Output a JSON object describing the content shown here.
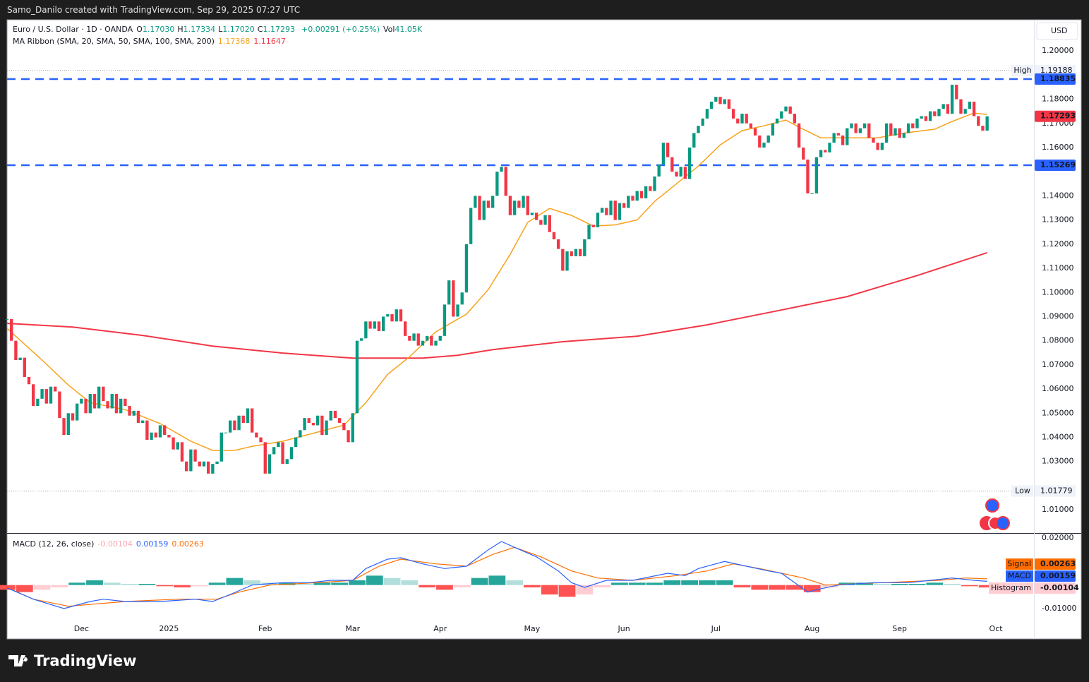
{
  "attribution": "Samo_Danilo created with TradingView.com, Sep 29, 2025 07:27 UTC",
  "brand": "TradingView",
  "legend": {
    "symbol": "Euro / U.S. Dollar · 1D · OANDA",
    "ohlc": [
      {
        "label": "O",
        "value": "1.17030"
      },
      {
        "label": "H",
        "value": "1.17334"
      },
      {
        "label": "L",
        "value": "1.17020"
      },
      {
        "label": "C",
        "value": "1.17293"
      }
    ],
    "change": "+0.00291 (+0.25%)",
    "volume": {
      "label": "Vol",
      "value": "41.05K"
    },
    "ma_title": "MA Ribbon (SMA, 20, SMA, 50, SMA, 100, SMA, 200)"
  },
  "chart_data": [
    {
      "type": "candlestick",
      "currency": "USD",
      "up_color": "#089981",
      "down_color": "#f23645",
      "closes": [
        1.089,
        1.08,
        1.072,
        1.073,
        1.065,
        1.062,
        1.053,
        1.056,
        1.06,
        1.054,
        1.061,
        1.059,
        1.048,
        1.041,
        1.05,
        1.047,
        1.054,
        1.056,
        1.05,
        1.058,
        1.052,
        1.061,
        1.055,
        1.052,
        1.058,
        1.05,
        1.056,
        1.053,
        1.049,
        1.051,
        1.046,
        1.047,
        1.039,
        1.042,
        1.04,
        1.045,
        1.041,
        1.04,
        1.035,
        1.038,
        1.03,
        1.026,
        1.035,
        1.03,
        1.028,
        1.03,
        1.025,
        1.029,
        1.03,
        1.042,
        1.042,
        1.047,
        1.043,
        1.049,
        1.046,
        1.052,
        1.042,
        1.04,
        1.038,
        1.025,
        1.033,
        1.036,
        1.038,
        1.029,
        1.031,
        1.036,
        1.04,
        1.043,
        1.048,
        1.046,
        1.045,
        1.049,
        1.041,
        1.047,
        1.051,
        1.048,
        1.046,
        1.043,
        1.038,
        1.05,
        1.08,
        1.081,
        1.088,
        1.085,
        1.088,
        1.084,
        1.09,
        1.091,
        1.088,
        1.093,
        1.088,
        1.082,
        1.08,
        1.083,
        1.078,
        1.08,
        1.082,
        1.078,
        1.08,
        1.082,
        1.095,
        1.105,
        1.09,
        1.095,
        1.1,
        1.12,
        1.135,
        1.14,
        1.13,
        1.138,
        1.135,
        1.14,
        1.15,
        1.152,
        1.14,
        1.132,
        1.138,
        1.135,
        1.14,
        1.132,
        1.133,
        1.13,
        1.128,
        1.132,
        1.125,
        1.122,
        1.118,
        1.109,
        1.117,
        1.115,
        1.118,
        1.115,
        1.122,
        1.128,
        1.127,
        1.133,
        1.135,
        1.132,
        1.138,
        1.13,
        1.137,
        1.135,
        1.14,
        1.138,
        1.142,
        1.139,
        1.144,
        1.142,
        1.148,
        1.153,
        1.162,
        1.156,
        1.15,
        1.148,
        1.152,
        1.147,
        1.16,
        1.166,
        1.169,
        1.172,
        1.176,
        1.179,
        1.181,
        1.178,
        1.18,
        1.176,
        1.172,
        1.17,
        1.174,
        1.17,
        1.168,
        1.165,
        1.16,
        1.162,
        1.165,
        1.17,
        1.172,
        1.175,
        1.177,
        1.174,
        1.17,
        1.16,
        1.155,
        1.141,
        1.141,
        1.156,
        1.159,
        1.158,
        1.162,
        1.166,
        1.165,
        1.161,
        1.168,
        1.17,
        1.166,
        1.168,
        1.17,
        1.164,
        1.162,
        1.159,
        1.162,
        1.17,
        1.165,
        1.168,
        1.164,
        1.166,
        1.17,
        1.168,
        1.172,
        1.173,
        1.171,
        1.175,
        1.173,
        1.176,
        1.178,
        1.174,
        1.186,
        1.18,
        1.174,
        1.176,
        1.179,
        1.173,
        1.169,
        1.167,
        1.17293
      ],
      "ma20": {
        "color": "#f7a21b",
        "x": [
          0,
          8,
          14,
          19,
          27,
          35,
          42,
          47,
          52,
          56,
          63,
          71,
          77,
          82,
          87,
          92,
          98,
          105,
          110,
          115,
          119,
          124,
          129,
          134,
          139,
          144,
          148,
          153,
          158,
          163,
          168,
          173,
          178,
          181,
          186,
          192,
          199,
          205,
          212,
          216,
          221,
          224
        ],
        "values": [
          1.0851,
          1.072,
          1.0617,
          1.0544,
          1.0515,
          1.0457,
          1.0384,
          1.0346,
          1.0346,
          1.0363,
          1.0384,
          1.0422,
          1.0451,
          1.0544,
          1.0661,
          1.0734,
          1.0837,
          1.091,
          1.1012,
          1.1158,
          1.129,
          1.1348,
          1.1319,
          1.1275,
          1.128,
          1.13,
          1.1377,
          1.145,
          1.1523,
          1.1611,
          1.167,
          1.169,
          1.1714,
          1.1684,
          1.164,
          1.164,
          1.164,
          1.166,
          1.1676,
          1.1708,
          1.1743,
          1.17368
        ]
      },
      "ma200": {
        "color": "#f23645",
        "x": [
          0,
          15,
          31,
          47,
          63,
          79,
          95,
          103,
          111,
          127,
          144,
          160,
          176,
          192,
          208,
          224
        ],
        "values": [
          1.0872,
          1.0857,
          1.0822,
          1.0778,
          1.0749,
          1.0728,
          1.0728,
          1.074,
          1.0763,
          1.0796,
          1.0819,
          1.0866,
          1.0924,
          1.0983,
          1.107,
          1.11647
        ]
      },
      "hlines": [
        {
          "value": 1.18835,
          "color": "#2962ff"
        },
        {
          "value": 1.15269,
          "color": "#2962ff"
        }
      ],
      "high": {
        "label": "High",
        "value": 1.19188
      },
      "low": {
        "label": "Low",
        "value": 1.01779
      },
      "xlim": [
        0,
        234.7
      ],
      "xticks": [
        {
          "value": 17,
          "label": "Dec"
        },
        {
          "value": 37,
          "label": "2025"
        },
        {
          "value": 59,
          "label": "Feb"
        },
        {
          "value": 79,
          "label": "Mar"
        },
        {
          "value": 99,
          "label": "Apr"
        },
        {
          "value": 120,
          "label": "May"
        },
        {
          "value": 141,
          "label": "Jun"
        },
        {
          "value": 162,
          "label": "Jul"
        },
        {
          "value": 184,
          "label": "Aug"
        },
        {
          "value": 204,
          "label": "Sep"
        },
        {
          "value": 226,
          "label": "Oct"
        }
      ],
      "ylim": [
        1.0004,
        1.2129
      ],
      "yticks": [
        {
          "value": 1.2,
          "label": "1.20000"
        },
        {
          "value": 1.18,
          "label": "1.18000"
        },
        {
          "value": 1.17,
          "label": "1.17000"
        },
        {
          "value": 1.16,
          "label": "1.16000"
        },
        {
          "value": 1.14,
          "label": "1.14000"
        },
        {
          "value": 1.13,
          "label": "1.13000"
        },
        {
          "value": 1.12,
          "label": "1.12000"
        },
        {
          "value": 1.11,
          "label": "1.11000"
        },
        {
          "value": 1.1,
          "label": "1.10000"
        },
        {
          "value": 1.09,
          "label": "1.09000"
        },
        {
          "value": 1.08,
          "label": "1.08000"
        },
        {
          "value": 1.07,
          "label": "1.07000"
        },
        {
          "value": 1.06,
          "label": "1.06000"
        },
        {
          "value": 1.05,
          "label": "1.05000"
        },
        {
          "value": 1.04,
          "label": "1.04000"
        },
        {
          "value": 1.03,
          "label": "1.03000"
        },
        {
          "value": 1.01,
          "label": "1.01000"
        }
      ]
    },
    {
      "type": "macd",
      "title": "MACD (12, 26, close)",
      "bar_colors": [
        "#26a69a",
        "#b2dfdb",
        "#ff5252",
        "#ffcdd2"
      ],
      "series": [
        {
          "name": "Signal",
          "color": "#ff6d00",
          "x": [
            0,
            6,
            14,
            27,
            39,
            48,
            53,
            60,
            71,
            79,
            85,
            90,
            98,
            105,
            111,
            116,
            122,
            129,
            135,
            143,
            153,
            160,
            166,
            172,
            177,
            182,
            187,
            200,
            213,
            219,
            224
          ],
          "values": [
            -0.001,
            -0.006,
            -0.009,
            -0.007,
            -0.006,
            -0.006,
            -0.003,
            0,
            0.001,
            0.002,
            0.008,
            0.011,
            0.009,
            0.008,
            0.013,
            0.016,
            0.012,
            0.006,
            0.003,
            0.002,
            0.004,
            0.006,
            0.009,
            0.007,
            0.005,
            0.003,
            0,
            0.001,
            0.002,
            0.003,
            0.00263
          ]
        },
        {
          "name": "MACD",
          "color": "#2962ff",
          "x": [
            0,
            6,
            13,
            19,
            22,
            27,
            35,
            43,
            47,
            51,
            56,
            63,
            69,
            74,
            79,
            82,
            87,
            90,
            95,
            100,
            105,
            110,
            113,
            116,
            121,
            126,
            129,
            132,
            137,
            143,
            151,
            155,
            158,
            164,
            169,
            174,
            177,
            180,
            183,
            185,
            190,
            198,
            206,
            211,
            216,
            221,
            224
          ],
          "values": [
            -0.0012,
            -0.006,
            -0.01,
            -0.007,
            -0.006,
            -0.007,
            -0.007,
            -0.006,
            -0.007,
            -0.004,
            0,
            0.001,
            0.001,
            0.002,
            0.002,
            0.007,
            0.011,
            0.0116,
            0.009,
            0.007,
            0.008,
            0.015,
            0.0185,
            0.016,
            0.012,
            0.006,
            0.001,
            -0.001,
            0.002,
            0.002,
            0.005,
            0.004,
            0.007,
            0.01,
            0.008,
            0.006,
            0.005,
            0.001,
            -0.003,
            -0.002,
            0,
            0.001,
            0.001,
            0.002,
            0.003,
            0.002,
            0.00159
          ]
        },
        {
          "name": "Histogram",
          "color": "#ffcdd2",
          "bar": true,
          "x": [
            0,
            4,
            8,
            12,
            16,
            20,
            24,
            28,
            32,
            36,
            40,
            44,
            48,
            52,
            56,
            60,
            64,
            68,
            72,
            76,
            80,
            84,
            88,
            92,
            96,
            100,
            104,
            108,
            112,
            116,
            120,
            124,
            128,
            132,
            136,
            140,
            144,
            148,
            152,
            156,
            160,
            164,
            168,
            172,
            176,
            180,
            184,
            188,
            192,
            196,
            200,
            204,
            208,
            212,
            216,
            220,
            224
          ],
          "values": [
            -0.002,
            -0.003,
            -0.002,
            -0.001,
            0.001,
            0.002,
            0.001,
            0.0005,
            0.0005,
            -0.0005,
            -0.001,
            -0.0005,
            0.001,
            0.003,
            0.002,
            0.001,
            0.001,
            0.0005,
            0.001,
            0.001,
            0.002,
            0.004,
            0.003,
            0.002,
            -0.001,
            -0.002,
            -0.001,
            0.003,
            0.004,
            0.002,
            -0.001,
            -0.004,
            -0.005,
            -0.004,
            -0.001,
            0.001,
            0.001,
            0.001,
            0.002,
            0.002,
            0.002,
            0.002,
            -0.001,
            -0.002,
            -0.002,
            -0.002,
            -0.003,
            -0.001,
            0.001,
            0.001,
            0.0005,
            0.0005,
            0.0005,
            0.001,
            0.0005,
            -0.0005,
            -0.00104
          ]
        }
      ],
      "xlim": [
        0,
        234.7
      ],
      "ylim": [
        -0.0229,
        0.0221
      ],
      "yticks": [
        {
          "value": 0.02,
          "label": "0.02000"
        },
        {
          "value": -0.01,
          "label": "-0.01000"
        }
      ]
    }
  ]
}
